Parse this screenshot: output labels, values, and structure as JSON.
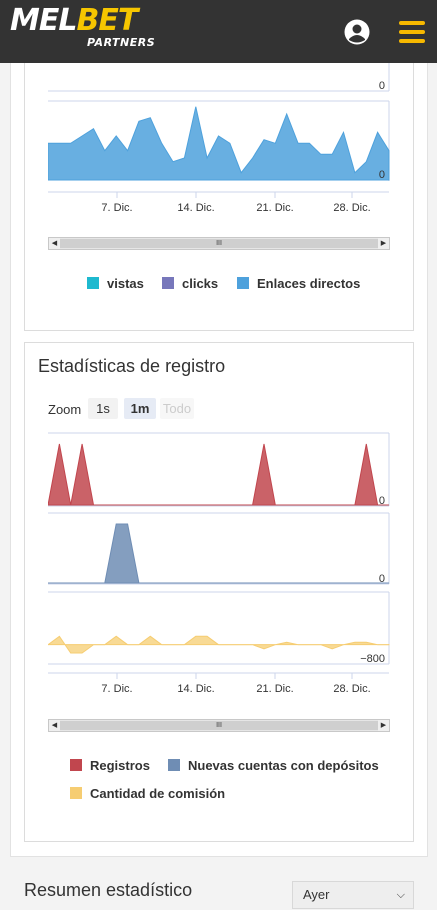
{
  "header": {
    "logo_part1": "MEL",
    "logo_part2": "BET",
    "logo_sub": "PARTNERS",
    "user_icon": "user-circle-icon",
    "menu_icon": "hamburger-menu-icon"
  },
  "traffic_chart": {
    "top_axis_value": "0",
    "main_axis_value": "0",
    "x_ticks": [
      "7. Dic.",
      "14. Dic.",
      "21. Dic.",
      "28. Dic."
    ],
    "legend": [
      {
        "label": "vistas",
        "color": "#1eb9cf"
      },
      {
        "label": "clicks",
        "color": "#7777bb"
      },
      {
        "label": "Enlaces directos",
        "color": "#4ea1dc"
      }
    ]
  },
  "registration": {
    "title": "Estadísticas de registro",
    "zoom_label": "Zoom",
    "zoom_options": [
      "1s",
      "1m",
      "Todo"
    ],
    "zoom_active": "1m",
    "axis_values": [
      "0",
      "0",
      "−800"
    ],
    "x_ticks": [
      "7. Dic.",
      "14. Dic.",
      "21. Dic.",
      "28. Dic."
    ],
    "legend": [
      {
        "label": "Registros",
        "color": "#c1464e"
      },
      {
        "label": "Nuevas cuentas con depósitos",
        "color": "#6f8db4"
      },
      {
        "label": "Cantidad de comisión",
        "color": "#f6cd72"
      }
    ]
  },
  "summary": {
    "title": "Resumen estadístico",
    "period_value": "Ayer"
  },
  "chart_data": [
    {
      "type": "area",
      "series": [
        {
          "name": "Enlaces directos",
          "values": [
            5,
            5,
            5,
            6,
            7,
            4,
            6,
            4,
            8,
            8.5,
            5,
            2.5,
            3,
            10,
            3,
            6,
            5,
            1,
            3,
            5.5,
            5,
            9,
            5,
            5,
            3.5,
            3.5,
            6.5,
            1,
            2.5,
            6.5,
            4
          ]
        }
      ],
      "x_ticks": [
        "7. Dic.",
        "14. Dic.",
        "21. Dic.",
        "28. Dic."
      ],
      "legend": [
        "vistas",
        "clicks",
        "Enlaces directos"
      ]
    },
    {
      "type": "area",
      "series": [
        {
          "name": "Registros",
          "values": [
            0,
            1,
            0,
            1,
            0,
            0,
            0,
            0,
            0,
            0,
            0,
            0,
            0,
            0,
            0,
            0,
            0,
            0,
            0,
            1,
            0,
            0,
            0,
            0,
            0,
            0,
            0,
            0,
            1,
            0,
            0
          ]
        },
        {
          "name": "Nuevas cuentas con depósitos",
          "values": [
            0,
            0,
            0,
            0,
            0,
            0,
            1,
            1,
            0,
            0,
            0,
            0,
            0,
            0,
            0,
            0,
            0,
            0,
            0,
            0,
            0,
            0,
            0,
            0,
            0,
            0,
            0,
            0,
            0,
            0,
            0
          ]
        },
        {
          "name": "Cantidad de comisión",
          "values": [
            0,
            1,
            -1,
            -1,
            0,
            0,
            1,
            0,
            0,
            1,
            0,
            0,
            0,
            1,
            1,
            0,
            0,
            0,
            0,
            -0.5,
            0,
            0.3,
            0,
            0,
            0,
            -0.5,
            0,
            0.3,
            0.3,
            0,
            0
          ]
        }
      ],
      "x_ticks": [
        "7. Dic.",
        "14. Dic.",
        "21. Dic.",
        "28. Dic."
      ],
      "axis_values": [
        "0",
        "0",
        "−800"
      ]
    }
  ]
}
